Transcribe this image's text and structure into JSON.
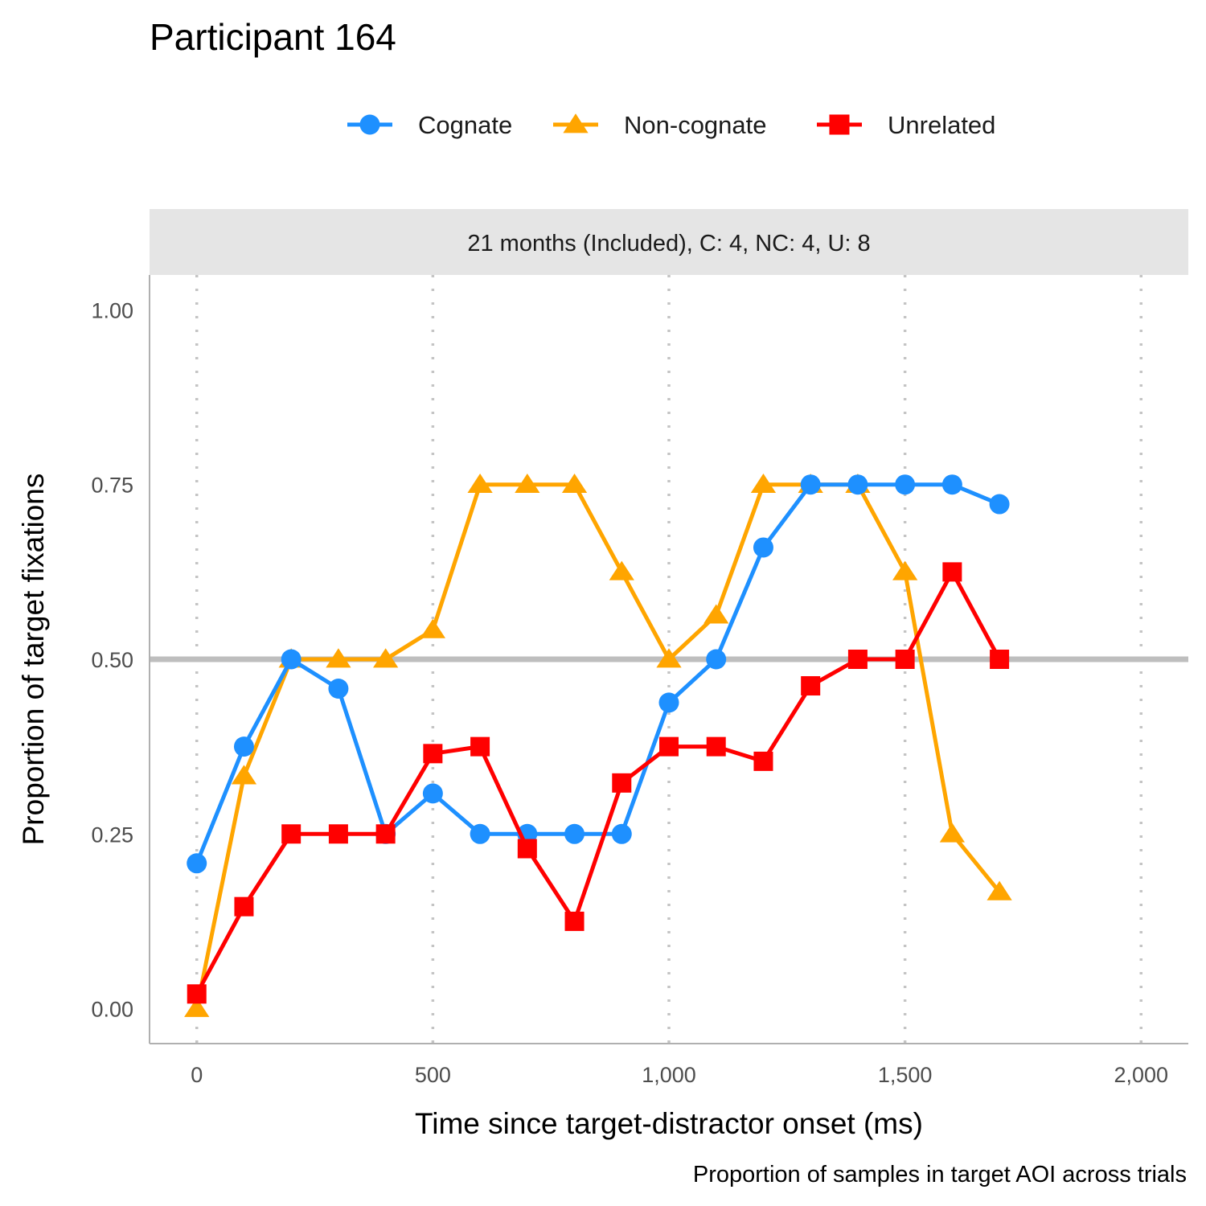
{
  "chart_data": {
    "type": "line",
    "title": "Participant 164",
    "facet_label": "21 months (Included), C: 4, NC: 4, U: 8",
    "xlabel": "Time since target-distractor onset (ms)",
    "ylabel": "Proportion of target fixations",
    "caption": "Proportion of samples in target AOI across trials",
    "xlim": [
      -100,
      2100
    ],
    "ylim": [
      -0.05,
      1.05
    ],
    "x_ticks": [
      0,
      500,
      1000,
      1500,
      2000
    ],
    "x_tick_labels": [
      "0",
      "500",
      "1,000",
      "1,500",
      "2,000"
    ],
    "y_ticks": [
      0,
      0.25,
      0.5,
      0.75,
      1.0
    ],
    "y_tick_labels": [
      "0.00",
      "0.25",
      "0.50",
      "0.75",
      "1.00"
    ],
    "reference_line_y": 0.5,
    "legend_position": "top",
    "grid": "vertical dotted at major x ticks",
    "x": [
      0,
      100,
      200,
      300,
      400,
      500,
      600,
      700,
      800,
      900,
      1000,
      1100,
      1200,
      1300,
      1400,
      1500,
      1600,
      1700
    ],
    "series": [
      {
        "name": "Cognate",
        "color": "#1E90FF",
        "marker": "circle",
        "values": [
          0.208,
          0.375,
          0.5,
          0.458,
          0.25,
          0.308,
          0.25,
          0.25,
          0.25,
          0.25,
          0.438,
          0.5,
          0.66,
          0.75,
          0.75,
          0.75,
          0.75,
          0.722
        ]
      },
      {
        "name": "Non-cognate",
        "color": "#FFA500",
        "marker": "triangle",
        "values": [
          0.0,
          0.333,
          0.5,
          0.5,
          0.5,
          0.542,
          0.75,
          0.75,
          0.75,
          0.625,
          0.5,
          0.563,
          0.75,
          0.75,
          0.75,
          0.625,
          0.25,
          0.167
        ]
      },
      {
        "name": "Unrelated",
        "color": "#FF0000",
        "marker": "square",
        "values": [
          0.021,
          0.146,
          0.25,
          0.25,
          0.25,
          0.365,
          0.375,
          0.229,
          0.125,
          0.323,
          0.375,
          0.375,
          0.354,
          0.462,
          0.5,
          0.5,
          0.625,
          0.5
        ]
      }
    ]
  }
}
